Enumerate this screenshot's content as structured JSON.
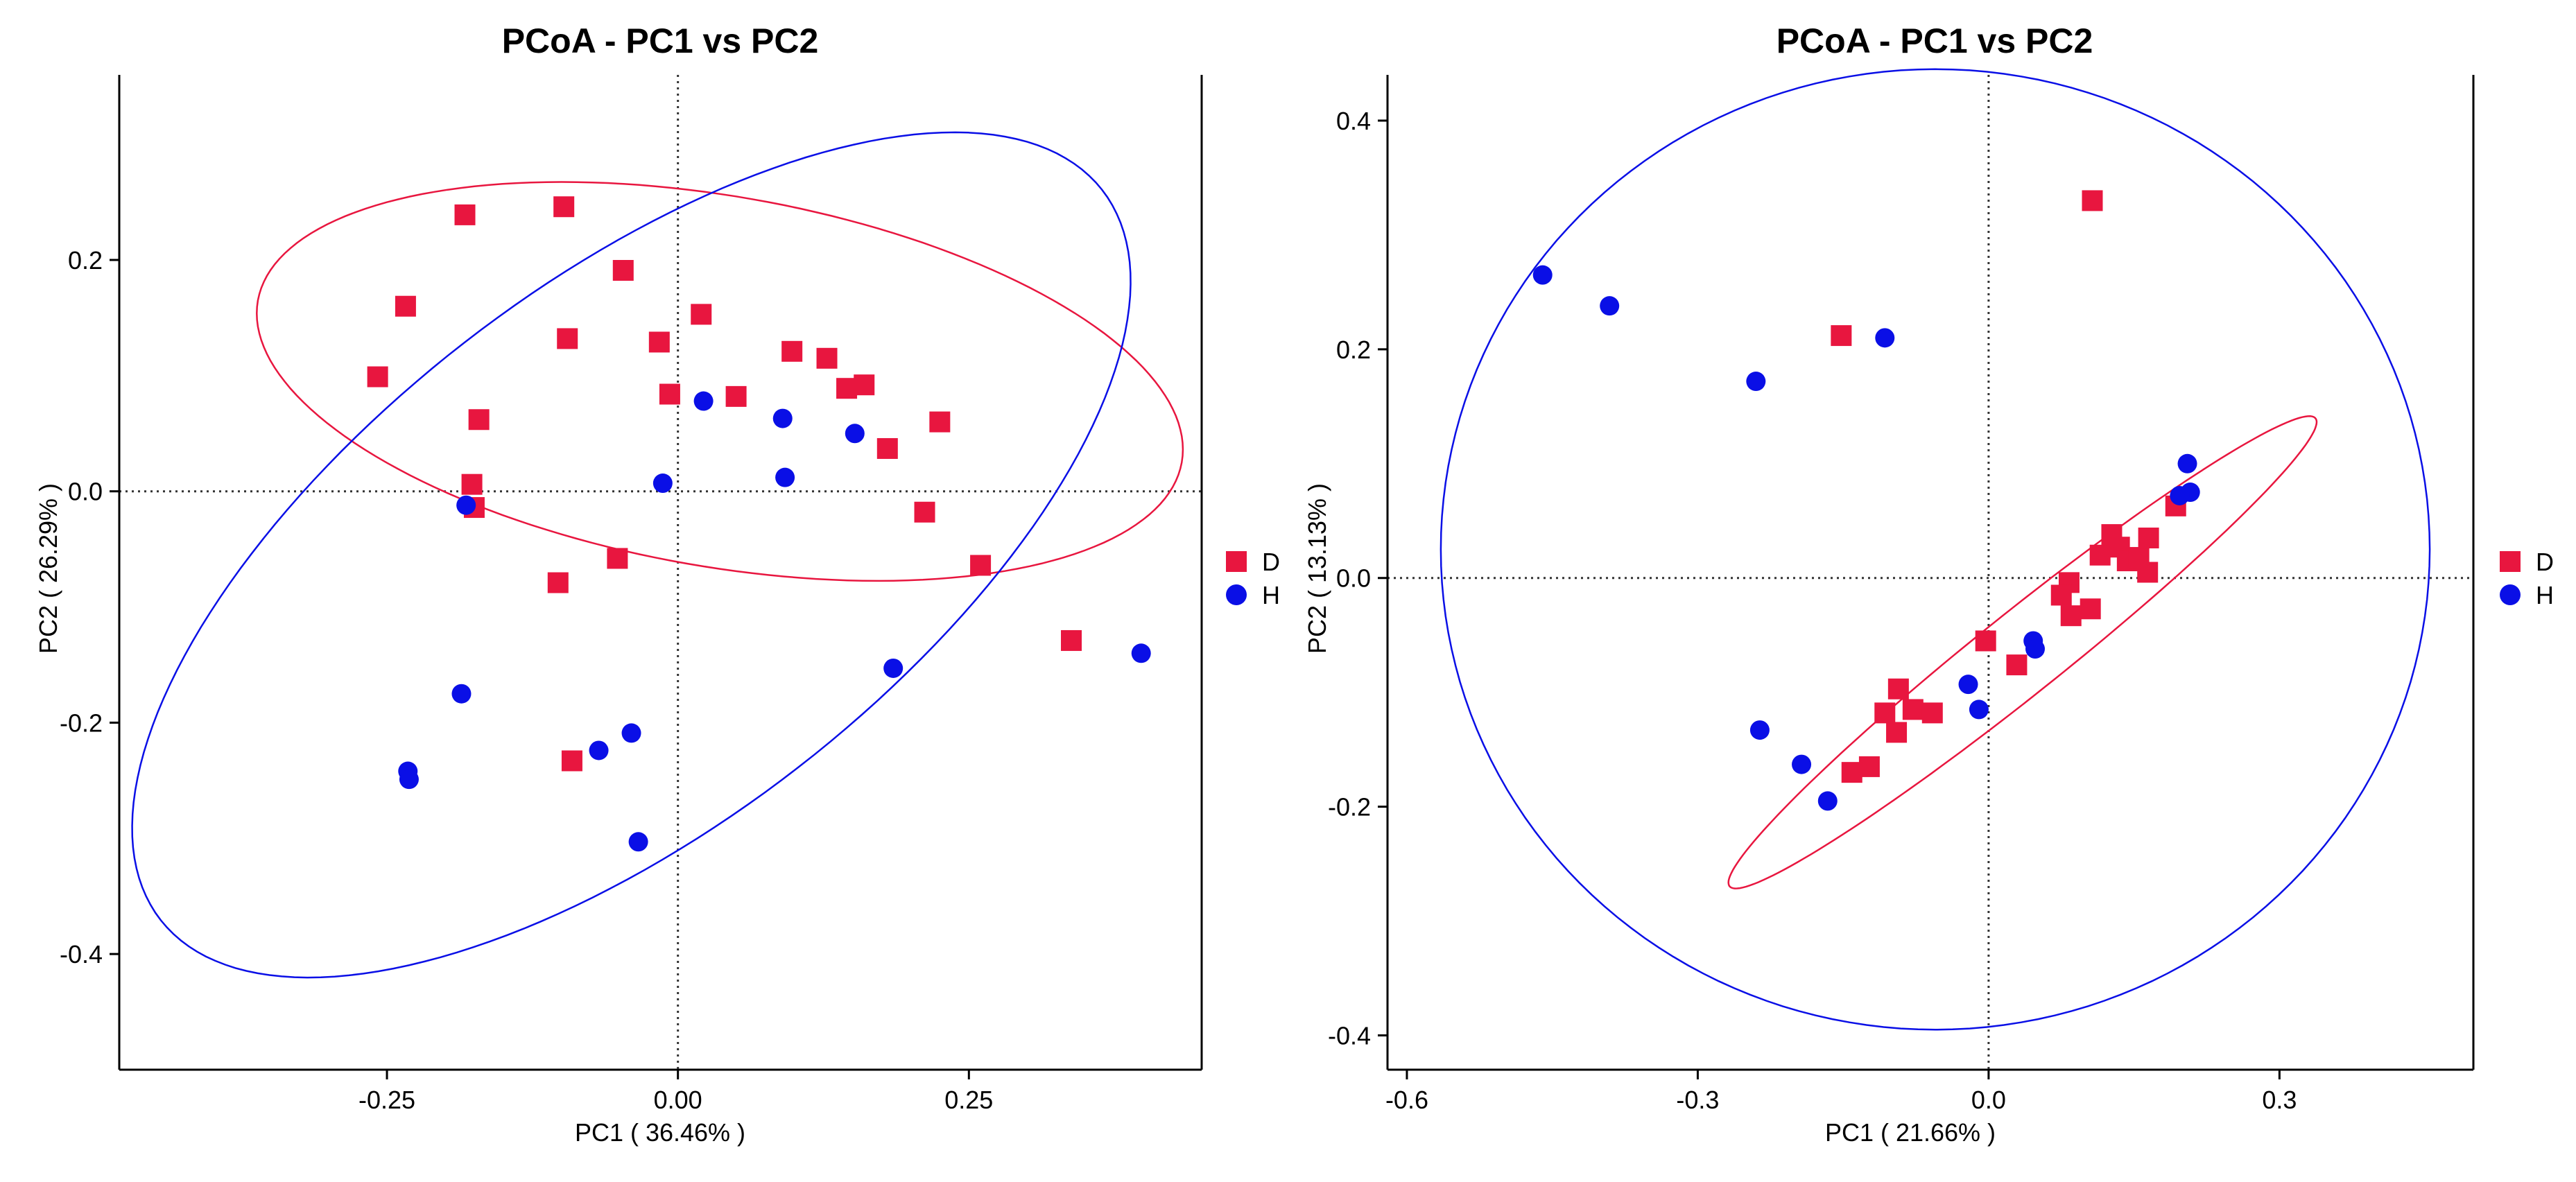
{
  "colors": {
    "D": "#E8163F",
    "H": "#0A0FE6",
    "axis": "#000000",
    "zero_line": "#333333"
  },
  "chart_data": [
    {
      "type": "scatter",
      "title": "PCoA - PC1 vs PC2",
      "xlabel": "PC1 ( 36.46% )",
      "ylabel": "PC2 ( 26.29% )",
      "xlim": [
        -0.48,
        0.45
      ],
      "ylim": [
        -0.5,
        0.36
      ],
      "xticks": [
        -0.25,
        0,
        0.25
      ],
      "xtick_labels": [
        "-0.25",
        "0.00",
        "0.25"
      ],
      "yticks": [
        -0.4,
        -0.2,
        0,
        0.2
      ],
      "ytick_labels": [
        "-0.4",
        "-0.2",
        "0.0",
        "0.2"
      ],
      "legend": [
        "D",
        "H"
      ],
      "series": [
        {
          "name": "D",
          "marker": "square",
          "points": [
            [
              -0.183,
              0.239
            ],
            [
              -0.098,
              0.246
            ],
            [
              -0.234,
              0.16
            ],
            [
              -0.258,
              0.099
            ],
            [
              -0.095,
              0.132
            ],
            [
              -0.047,
              0.191
            ],
            [
              -0.016,
              0.129
            ],
            [
              0.02,
              0.153
            ],
            [
              -0.007,
              0.084
            ],
            [
              0.05,
              0.082
            ],
            [
              0.098,
              0.121
            ],
            [
              0.128,
              0.115
            ],
            [
              0.145,
              0.089
            ],
            [
              0.16,
              0.092
            ],
            [
              0.18,
              0.037
            ],
            [
              0.225,
              0.06
            ],
            [
              -0.171,
              0.062
            ],
            [
              -0.177,
              0.006
            ],
            [
              -0.175,
              -0.014
            ],
            [
              -0.103,
              -0.079
            ],
            [
              -0.052,
              -0.058
            ],
            [
              0.212,
              -0.018
            ],
            [
              0.26,
              -0.064
            ],
            [
              0.338,
              -0.129
            ],
            [
              -0.091,
              -0.233
            ]
          ]
        },
        {
          "name": "H",
          "marker": "circle",
          "points": [
            [
              0.022,
              0.078
            ],
            [
              0.09,
              0.063
            ],
            [
              0.152,
              0.05
            ],
            [
              -0.013,
              0.007
            ],
            [
              0.092,
              0.012
            ],
            [
              -0.182,
              -0.012
            ],
            [
              -0.186,
              -0.175
            ],
            [
              -0.04,
              -0.209
            ],
            [
              -0.068,
              -0.224
            ],
            [
              -0.034,
              -0.303
            ],
            [
              -0.232,
              -0.242
            ],
            [
              -0.231,
              -0.249
            ],
            [
              0.185,
              -0.153
            ],
            [
              0.398,
              -0.14
            ]
          ]
        }
      ],
      "ellipses": [
        {
          "group": "D",
          "center": [
            0.036,
            0.095
          ],
          "semi_axes": [
            0.403,
            0.16
          ],
          "angle_deg": -10
        },
        {
          "group": "H",
          "center": [
            -0.04,
            -0.055
          ],
          "semi_axes": [
            0.513,
            0.233
          ],
          "angle_deg": 38
        }
      ]
    },
    {
      "type": "scatter",
      "title": "PCoA - PC1 vs PC2",
      "xlabel": "PC1 ( 21.66% )",
      "ylabel": "PC2 ( 13.13% )",
      "xlim": [
        -0.62,
        0.5
      ],
      "ylim": [
        -0.43,
        0.44
      ],
      "xticks": [
        -0.6,
        -0.3,
        0,
        0.3
      ],
      "xtick_labels": [
        "-0.6",
        "-0.3",
        "0.0",
        "0.3"
      ],
      "yticks": [
        -0.4,
        -0.2,
        0,
        0.2,
        0.4
      ],
      "ytick_labels": [
        "-0.4",
        "-0.2",
        "0.0",
        "0.2",
        "0.4"
      ],
      "legend": [
        "D",
        "H"
      ],
      "series": [
        {
          "name": "D",
          "marker": "square",
          "points": [
            [
              0.107,
              0.33
            ],
            [
              -0.152,
              0.212
            ],
            [
              0.193,
              0.063
            ],
            [
              0.115,
              0.02
            ],
            [
              0.127,
              0.038
            ],
            [
              0.135,
              0.027
            ],
            [
              0.143,
              0.015
            ],
            [
              0.155,
              0.018
            ],
            [
              0.165,
              0.035
            ],
            [
              0.164,
              0.005
            ],
            [
              0.105,
              -0.027
            ],
            [
              0.083,
              -0.004
            ],
            [
              0.085,
              -0.033
            ],
            [
              0.075,
              -0.015
            ],
            [
              -0.003,
              -0.055
            ],
            [
              0.029,
              -0.076
            ],
            [
              -0.093,
              -0.097
            ],
            [
              -0.078,
              -0.115
            ],
            [
              -0.058,
              -0.118
            ],
            [
              -0.107,
              -0.118
            ],
            [
              -0.095,
              -0.135
            ],
            [
              -0.123,
              -0.165
            ],
            [
              -0.141,
              -0.17
            ]
          ]
        },
        {
          "name": "H",
          "marker": "circle",
          "points": [
            [
              -0.46,
              0.265
            ],
            [
              -0.391,
              0.238
            ],
            [
              -0.107,
              0.21
            ],
            [
              -0.24,
              0.172
            ],
            [
              0.205,
              0.1
            ],
            [
              0.208,
              0.075
            ],
            [
              0.197,
              0.072
            ],
            [
              0.046,
              -0.055
            ],
            [
              0.048,
              -0.062
            ],
            [
              -0.021,
              -0.093
            ],
            [
              -0.01,
              -0.115
            ],
            [
              -0.236,
              -0.133
            ],
            [
              -0.193,
              -0.163
            ],
            [
              -0.166,
              -0.195
            ]
          ]
        }
      ],
      "ellipses": [
        {
          "group": "D",
          "center": [
            0.035,
            -0.065
          ],
          "semi_axes": [
            0.365,
            0.038
          ],
          "angle_deg": 34
        },
        {
          "group": "H",
          "center": [
            -0.055,
            0.025
          ],
          "semi_axes": [
            0.51,
            0.42
          ],
          "angle_deg": 0
        }
      ]
    }
  ]
}
